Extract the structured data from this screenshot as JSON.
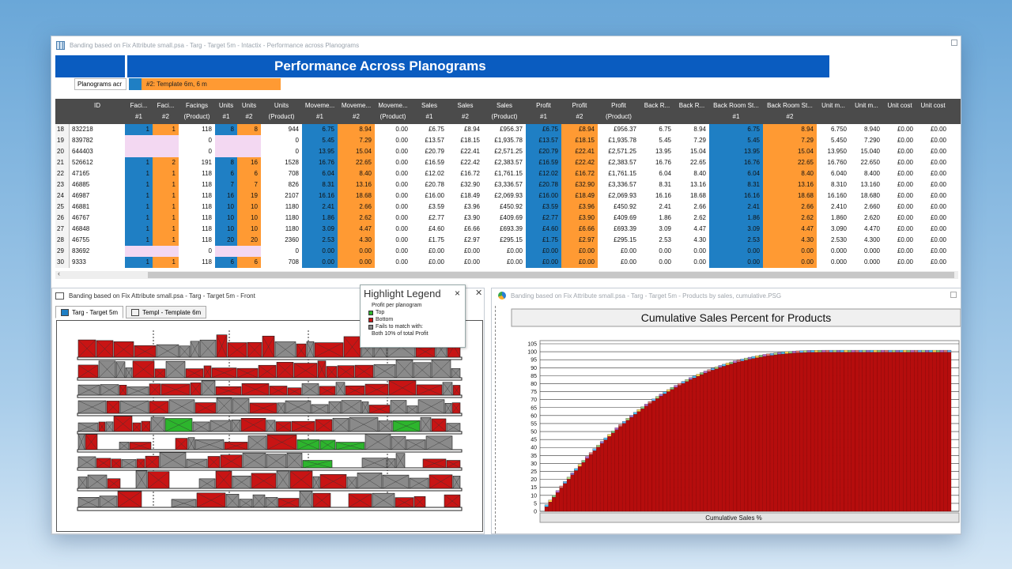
{
  "top_window": {
    "title": "Banding based on Fix Attribute small.psa - Targ - Target 5m - Intactix - Performance across Planograms",
    "heading": "Performance Across Planograms",
    "planograms_label": "Planograms acr",
    "template_label": "#2: Template 6m,  6 m"
  },
  "table": {
    "columns": [
      {
        "l1": "ID",
        "l2": ""
      },
      {
        "l1": "Faci...",
        "l2": "#1"
      },
      {
        "l1": "Faci...",
        "l2": "#2"
      },
      {
        "l1": "Facings",
        "l2": "(Product)"
      },
      {
        "l1": "Units",
        "l2": "#1"
      },
      {
        "l1": "Units",
        "l2": "#2"
      },
      {
        "l1": "Units",
        "l2": "(Product)"
      },
      {
        "l1": "Moveme...",
        "l2": "#1"
      },
      {
        "l1": "Moveme...",
        "l2": "#2"
      },
      {
        "l1": "Moveme...",
        "l2": "(Product)"
      },
      {
        "l1": "Sales",
        "l2": "#1"
      },
      {
        "l1": "Sales",
        "l2": "#2"
      },
      {
        "l1": "Sales",
        "l2": "(Product)"
      },
      {
        "l1": "Profit",
        "l2": "#1"
      },
      {
        "l1": "Profit",
        "l2": "#2"
      },
      {
        "l1": "Profit",
        "l2": "(Product)"
      },
      {
        "l1": "Back R...",
        "l2": ""
      },
      {
        "l1": "Back R...",
        "l2": ""
      },
      {
        "l1": "Back Room St...",
        "l2": "#1"
      },
      {
        "l1": "Back Room St...",
        "l2": "#2"
      },
      {
        "l1": "Unit m...",
        "l2": ""
      },
      {
        "l1": "Unit m...",
        "l2": ""
      },
      {
        "l1": "Unit cost",
        "l2": ""
      },
      {
        "l1": "Unit cost",
        "l2": ""
      }
    ],
    "rows": [
      {
        "n": "18",
        "id": "832218",
        "f1": "1",
        "f2": "1",
        "fp": "118",
        "u1": "8",
        "u2": "8",
        "up": "944",
        "m1": "6.75",
        "m2": "8.94",
        "mp": "0.00",
        "s1": "£6.75",
        "s2": "£8.94",
        "sp": "£956.37",
        "p1": "£6.75",
        "p2": "£8.94",
        "pp": "£956.37",
        "b1": "6.75",
        "b2": "8.94",
        "bs1": "6.75",
        "bs2": "8.94",
        "um1": "6.750",
        "um2": "8.940",
        "uc1": "£0.00",
        "uc2": "£0.00",
        "pink": false
      },
      {
        "n": "19",
        "id": "839782",
        "f1": "",
        "f2": "",
        "fp": "0",
        "u1": "",
        "u2": "",
        "up": "0",
        "m1": "5.45",
        "m2": "7.29",
        "mp": "0.00",
        "s1": "£13.57",
        "s2": "£18.15",
        "sp": "£1,935.78",
        "p1": "£13.57",
        "p2": "£18.15",
        "pp": "£1,935.78",
        "b1": "5.45",
        "b2": "7.29",
        "bs1": "5.45",
        "bs2": "7.29",
        "um1": "5.450",
        "um2": "7.290",
        "uc1": "£0.00",
        "uc2": "£0.00",
        "pink": true
      },
      {
        "n": "20",
        "id": "644403",
        "f1": "",
        "f2": "",
        "fp": "0",
        "u1": "",
        "u2": "",
        "up": "0",
        "m1": "13.95",
        "m2": "15.04",
        "mp": "0.00",
        "s1": "£20.79",
        "s2": "£22.41",
        "sp": "£2,571.25",
        "p1": "£20.79",
        "p2": "£22.41",
        "pp": "£2,571.25",
        "b1": "13.95",
        "b2": "15.04",
        "bs1": "13.95",
        "bs2": "15.04",
        "um1": "13.950",
        "um2": "15.040",
        "uc1": "£0.00",
        "uc2": "£0.00",
        "pink": true
      },
      {
        "n": "21",
        "id": "526612",
        "f1": "1",
        "f2": "2",
        "fp": "191",
        "u1": "8",
        "u2": "16",
        "up": "1528",
        "m1": "16.76",
        "m2": "22.65",
        "mp": "0.00",
        "s1": "£16.59",
        "s2": "£22.42",
        "sp": "£2,383.57",
        "p1": "£16.59",
        "p2": "£22.42",
        "pp": "£2,383.57",
        "b1": "16.76",
        "b2": "22.65",
        "bs1": "16.76",
        "bs2": "22.65",
        "um1": "16.760",
        "um2": "22.650",
        "uc1": "£0.00",
        "uc2": "£0.00",
        "pink": false
      },
      {
        "n": "22",
        "id": "47165",
        "f1": "1",
        "f2": "1",
        "fp": "118",
        "u1": "6",
        "u2": "6",
        "up": "708",
        "m1": "6.04",
        "m2": "8.40",
        "mp": "0.00",
        "s1": "£12.02",
        "s2": "£16.72",
        "sp": "£1,761.15",
        "p1": "£12.02",
        "p2": "£16.72",
        "pp": "£1,761.15",
        "b1": "6.04",
        "b2": "8.40",
        "bs1": "6.04",
        "bs2": "8.40",
        "um1": "6.040",
        "um2": "8.400",
        "uc1": "£0.00",
        "uc2": "£0.00",
        "pink": false
      },
      {
        "n": "23",
        "id": "46885",
        "f1": "1",
        "f2": "1",
        "fp": "118",
        "u1": "7",
        "u2": "7",
        "up": "826",
        "m1": "8.31",
        "m2": "13.16",
        "mp": "0.00",
        "s1": "£20.78",
        "s2": "£32.90",
        "sp": "£3,336.57",
        "p1": "£20.78",
        "p2": "£32.90",
        "pp": "£3,336.57",
        "b1": "8.31",
        "b2": "13.16",
        "bs1": "8.31",
        "bs2": "13.16",
        "um1": "8.310",
        "um2": "13.160",
        "uc1": "£0.00",
        "uc2": "£0.00",
        "pink": false
      },
      {
        "n": "24",
        "id": "46987",
        "f1": "1",
        "f2": "1",
        "fp": "118",
        "u1": "16",
        "u2": "19",
        "up": "2107",
        "m1": "16.16",
        "m2": "18.68",
        "mp": "0.00",
        "s1": "£16.00",
        "s2": "£18.49",
        "sp": "£2,069.93",
        "p1": "£16.00",
        "p2": "£18.49",
        "pp": "£2,069.93",
        "b1": "16.16",
        "b2": "18.68",
        "bs1": "16.16",
        "bs2": "18.68",
        "um1": "16.160",
        "um2": "18.680",
        "uc1": "£0.00",
        "uc2": "£0.00",
        "pink": false
      },
      {
        "n": "25",
        "id": "46881",
        "f1": "1",
        "f2": "1",
        "fp": "118",
        "u1": "10",
        "u2": "10",
        "up": "1180",
        "m1": "2.41",
        "m2": "2.66",
        "mp": "0.00",
        "s1": "£3.59",
        "s2": "£3.96",
        "sp": "£450.92",
        "p1": "£3.59",
        "p2": "£3.96",
        "pp": "£450.92",
        "b1": "2.41",
        "b2": "2.66",
        "bs1": "2.41",
        "bs2": "2.66",
        "um1": "2.410",
        "um2": "2.660",
        "uc1": "£0.00",
        "uc2": "£0.00",
        "pink": false
      },
      {
        "n": "26",
        "id": "46767",
        "f1": "1",
        "f2": "1",
        "fp": "118",
        "u1": "10",
        "u2": "10",
        "up": "1180",
        "m1": "1.86",
        "m2": "2.62",
        "mp": "0.00",
        "s1": "£2.77",
        "s2": "£3.90",
        "sp": "£409.69",
        "p1": "£2.77",
        "p2": "£3.90",
        "pp": "£409.69",
        "b1": "1.86",
        "b2": "2.62",
        "bs1": "1.86",
        "bs2": "2.62",
        "um1": "1.860",
        "um2": "2.620",
        "uc1": "£0.00",
        "uc2": "£0.00",
        "pink": false
      },
      {
        "n": "27",
        "id": "46848",
        "f1": "1",
        "f2": "1",
        "fp": "118",
        "u1": "10",
        "u2": "10",
        "up": "1180",
        "m1": "3.09",
        "m2": "4.47",
        "mp": "0.00",
        "s1": "£4.60",
        "s2": "£6.66",
        "sp": "£693.39",
        "p1": "£4.60",
        "p2": "£6.66",
        "pp": "£693.39",
        "b1": "3.09",
        "b2": "4.47",
        "bs1": "3.09",
        "bs2": "4.47",
        "um1": "3.090",
        "um2": "4.470",
        "uc1": "£0.00",
        "uc2": "£0.00",
        "pink": false
      },
      {
        "n": "28",
        "id": "46755",
        "f1": "1",
        "f2": "1",
        "fp": "118",
        "u1": "20",
        "u2": "20",
        "up": "2360",
        "m1": "2.53",
        "m2": "4.30",
        "mp": "0.00",
        "s1": "£1.75",
        "s2": "£2.97",
        "sp": "£295.15",
        "p1": "£1.75",
        "p2": "£2.97",
        "pp": "£295.15",
        "b1": "2.53",
        "b2": "4.30",
        "bs1": "2.53",
        "bs2": "4.30",
        "um1": "2.530",
        "um2": "4.300",
        "uc1": "£0.00",
        "uc2": "£0.00",
        "pink": false
      },
      {
        "n": "29",
        "id": "83692",
        "f1": "",
        "f2": "",
        "fp": "0",
        "u1": "",
        "u2": "",
        "up": "0",
        "m1": "0.00",
        "m2": "0.00",
        "mp": "0.00",
        "s1": "£0.00",
        "s2": "£0.00",
        "sp": "£0.00",
        "p1": "£0.00",
        "p2": "£0.00",
        "pp": "£0.00",
        "b1": "0.00",
        "b2": "0.00",
        "bs1": "0.00",
        "bs2": "0.00",
        "um1": "0.000",
        "um2": "0.000",
        "uc1": "£0.00",
        "uc2": "£0.00",
        "pink": true
      },
      {
        "n": "30",
        "id": "9333",
        "f1": "1",
        "f2": "1",
        "fp": "118",
        "u1": "6",
        "u2": "6",
        "up": "708",
        "m1": "0.00",
        "m2": "0.00",
        "mp": "0.00",
        "s1": "£0.00",
        "s2": "£0.00",
        "sp": "£0.00",
        "p1": "£0.00",
        "p2": "£0.00",
        "pp": "£0.00",
        "b1": "0.00",
        "b2": "0.00",
        "bs1": "0.00",
        "bs2": "0.00",
        "um1": "0.000",
        "um2": "0.000",
        "uc1": "£0.00",
        "uc2": "£0.00",
        "pink": false
      }
    ]
  },
  "front_window": {
    "title": "Banding based on Fix Attribute small.psa - Targ - Target 5m - Front",
    "tabs": [
      "Targ - Target 5m",
      "Templ - Template 6m"
    ]
  },
  "legend": {
    "title": "Highlight Legend",
    "close": "×",
    "heading": "Profit per planogram",
    "items": [
      {
        "label": "Top",
        "color": "#2db52d"
      },
      {
        "label": "Bottom",
        "color": "#c81414"
      },
      {
        "label": "Fails to match with:",
        "color": "#8a8a8a"
      }
    ],
    "note": "Both 10% of total Profit"
  },
  "chart_window": {
    "title": "Banding based on Fix Attribute small.psa - Targ - Target 5m - Products by sales, cumulative.PSG"
  },
  "colors": {
    "band1": "#1f7fc4",
    "band2": "#ff9a33",
    "nomatch": "#f3d8f2",
    "bar": "#b50d0d"
  },
  "chart_data": {
    "type": "bar",
    "title": "Cumulative Sales Percent for Products",
    "xlabel": "Cumulative Sales %",
    "ylabel": "",
    "ylim": [
      0,
      105
    ],
    "yticks": [
      0,
      5,
      10,
      15,
      20,
      25,
      30,
      35,
      40,
      45,
      50,
      55,
      60,
      65,
      70,
      75,
      80,
      85,
      90,
      95,
      100,
      105
    ],
    "n_bars": 110,
    "curve": "concave cumulative curve rising from about 5 to 100, reaching 100 after about 40% of products",
    "grid": true
  }
}
